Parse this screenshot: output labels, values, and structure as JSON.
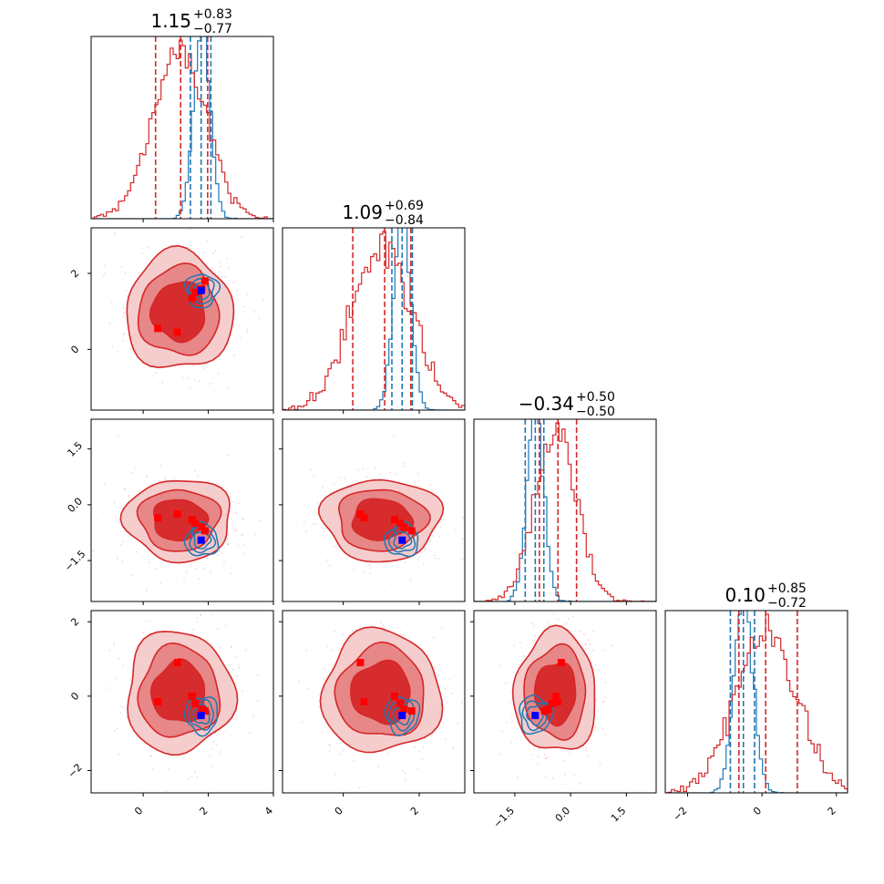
{
  "chart_data": {
    "type": "corner",
    "colors": {
      "red": "#d62728",
      "red_mid": "#e57f80",
      "red_light": "#f4c8c8",
      "blue": "#1f77b4",
      "marker_red": "#ff0000",
      "marker_blue": "#0000ff"
    },
    "ranges": [
      [
        -1.6,
        4.0
      ],
      [
        -1.6,
        3.2
      ],
      [
        -2.6,
        2.3
      ],
      [
        -2.6,
        2.3
      ]
    ],
    "ticks": [
      [
        {
          "v": 0,
          "label": "0"
        },
        {
          "v": 2,
          "label": "2"
        },
        {
          "v": 4,
          "label": "4"
        }
      ],
      [
        {
          "v": 0,
          "label": "0"
        },
        {
          "v": 2,
          "label": "2"
        }
      ],
      [
        {
          "v": -1.5,
          "label": "−1.5"
        },
        {
          "v": 0.0,
          "label": "0.0"
        },
        {
          "v": 1.5,
          "label": "1.5"
        }
      ],
      [
        {
          "v": -2,
          "label": "−2"
        },
        {
          "v": 0,
          "label": "0"
        },
        {
          "v": 2,
          "label": "2"
        }
      ]
    ],
    "titles": [
      {
        "value": "1.15",
        "plus": "+0.83",
        "minus": "−0.77"
      },
      {
        "value": "1.09",
        "plus": "+0.69",
        "minus": "−0.84"
      },
      {
        "value": "−0.34",
        "plus": "+0.50",
        "minus": "−0.50"
      },
      {
        "value": "0.10",
        "plus": "+0.85",
        "minus": "−0.72"
      }
    ],
    "red_dist": {
      "mean": [
        1.1,
        1.0,
        -0.4,
        0.1
      ],
      "sd": [
        0.82,
        0.78,
        0.55,
        0.82
      ],
      "quantiles": [
        [
          0.38,
          1.15,
          1.98
        ],
        [
          0.25,
          1.09,
          1.78
        ],
        [
          -0.84,
          -0.34,
          0.16
        ],
        [
          -0.62,
          0.1,
          0.95
        ]
      ]
    },
    "blue_dist": {
      "mean": [
        1.8,
        1.55,
        -0.95,
        -0.5
      ],
      "sd": [
        0.25,
        0.22,
        0.22,
        0.25
      ],
      "quantiles": [
        [
          1.45,
          1.78,
          2.08
        ],
        [
          1.28,
          1.55,
          1.82
        ],
        [
          -1.22,
          -0.95,
          -0.72
        ],
        [
          -0.85,
          -0.5,
          -0.2
        ]
      ]
    },
    "markers_red": [
      [
        0.45,
        0.55,
        -0.35,
        -0.15
      ],
      [
        1.05,
        0.45,
        -0.25,
        0.9
      ],
      [
        1.5,
        1.35,
        -0.4,
        0.0
      ],
      [
        1.9,
        1.8,
        -0.7,
        -0.4
      ],
      [
        1.8,
        1.6,
        -0.6,
        -0.35
      ],
      [
        1.6,
        1.5,
        -0.5,
        -0.2
      ]
    ],
    "marker_blue": [
      1.78,
      1.55,
      -0.95,
      -0.52
    ]
  }
}
